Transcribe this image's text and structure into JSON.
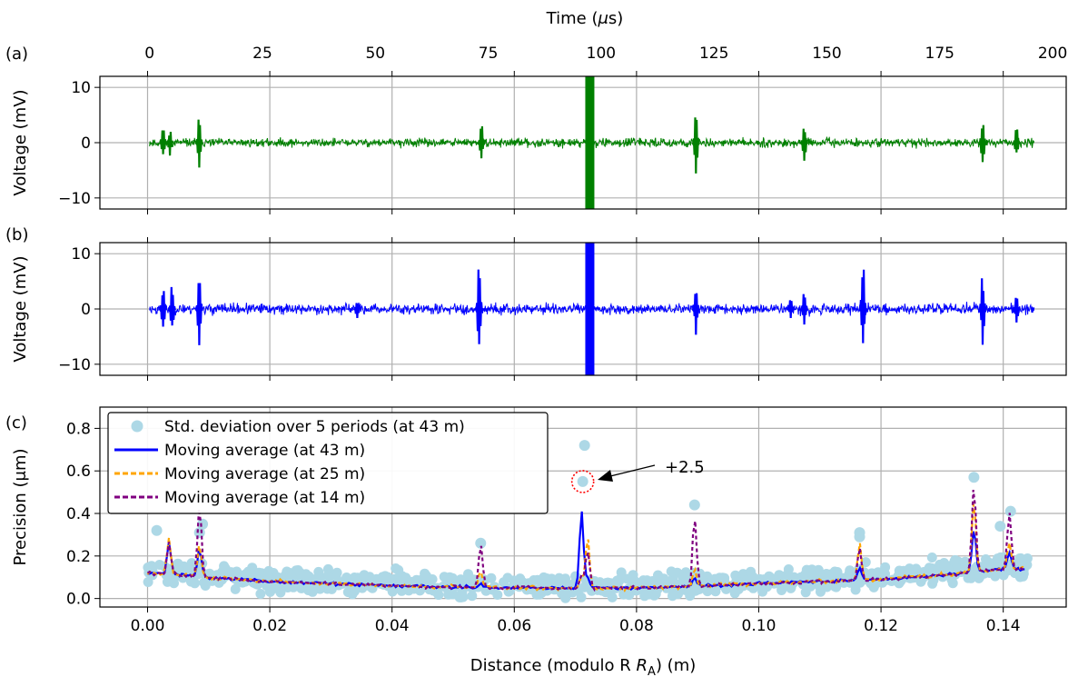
{
  "chart_data": [
    {
      "panel": "(a)",
      "type": "line",
      "top_axis": {
        "label": "Time (μs)",
        "ticks": [
          "0",
          "25",
          "50",
          "75",
          "100",
          "125",
          "150",
          "175",
          "200"
        ],
        "range": [
          -11,
          203
        ]
      },
      "ylabel": "Voltage (mV)",
      "yticks": [
        "10",
        "0",
        "−10"
      ],
      "ylim": [
        -12,
        12
      ],
      "grid": true,
      "color": "#008000",
      "noise_amplitude_mV": 0.8,
      "time_range_us": [
        0,
        196
      ],
      "bursts": [
        {
          "x_us": 3,
          "amp_mV": 3.5
        },
        {
          "x_us": 4.5,
          "amp_mV": 2.5
        },
        {
          "x_us": 11,
          "amp_mV": 5.5
        },
        {
          "x_us": 73.5,
          "amp_mV": 4
        },
        {
          "x_us": 97.5,
          "amp_mV": 12
        },
        {
          "x_us": 121,
          "amp_mV": 6
        },
        {
          "x_us": 145,
          "amp_mV": 4
        },
        {
          "x_us": 184.5,
          "amp_mV": 5
        },
        {
          "x_us": 192,
          "amp_mV": 3
        }
      ]
    },
    {
      "panel": "(b)",
      "type": "line",
      "ylabel": "Voltage (mV)",
      "yticks": [
        "10",
        "0",
        "−10"
      ],
      "ylim": [
        -12,
        12
      ],
      "grid": true,
      "color": "#0000ff",
      "noise_amplitude_mV": 1.0,
      "time_range_us": [
        0,
        196
      ],
      "bursts": [
        {
          "x_us": 3,
          "amp_mV": 4.5
        },
        {
          "x_us": 5,
          "amp_mV": 5
        },
        {
          "x_us": 11,
          "amp_mV": 7
        },
        {
          "x_us": 46,
          "amp_mV": 2
        },
        {
          "x_us": 73,
          "amp_mV": 9
        },
        {
          "x_us": 97.5,
          "amp_mV": 12
        },
        {
          "x_us": 121,
          "amp_mV": 5
        },
        {
          "x_us": 142,
          "amp_mV": 2
        },
        {
          "x_us": 145,
          "amp_mV": 4
        },
        {
          "x_us": 158,
          "amp_mV": 10.5
        },
        {
          "x_us": 184.5,
          "amp_mV": 7
        },
        {
          "x_us": 192,
          "amp_mV": 3
        }
      ]
    },
    {
      "panel": "(c)",
      "type": "scatter",
      "xlabel": "Distance (modulo R",
      "xlabel_sub": "A",
      "xlabel_end": ") (m)",
      "xticks": [
        "0.00",
        "0.02",
        "0.04",
        "0.06",
        "0.08",
        "0.10",
        "0.12",
        "0.14"
      ],
      "xlim": [
        -0.0078,
        0.1503
      ],
      "ylabel": "Precision (μm)",
      "yticks": [
        "0.8",
        "0.6",
        "0.4",
        "0.2",
        "0.0"
      ],
      "ylim": [
        -0.04,
        0.9
      ],
      "grid": true,
      "legend_position": "upper-left",
      "series": [
        {
          "name": "Std. deviation over 5 periods (at 43 m)",
          "style": "scatter",
          "color": "#add8e6"
        },
        {
          "name": "Moving average (at 43 m)",
          "style": "solid",
          "color": "#0000ff"
        },
        {
          "name": "Moving average (at 25 m)",
          "style": "dashed",
          "color": "#ffa500"
        },
        {
          "name": "Moving average (at 14 m)",
          "style": "dashed",
          "color": "#800080"
        }
      ],
      "baseline": [
        {
          "x": 0.0,
          "y": 0.12
        },
        {
          "x": 0.006,
          "y": 0.11
        },
        {
          "x": 0.01,
          "y": 0.1
        },
        {
          "x": 0.02,
          "y": 0.08
        },
        {
          "x": 0.04,
          "y": 0.06
        },
        {
          "x": 0.06,
          "y": 0.05
        },
        {
          "x": 0.08,
          "y": 0.05
        },
        {
          "x": 0.1,
          "y": 0.07
        },
        {
          "x": 0.12,
          "y": 0.09
        },
        {
          "x": 0.13,
          "y": 0.11
        },
        {
          "x": 0.14,
          "y": 0.14
        },
        {
          "x": 0.144,
          "y": 0.14
        }
      ],
      "spikes": [
        {
          "x": 0.0035,
          "h43": 0.15,
          "h25": 0.16,
          "h14": 0.15
        },
        {
          "x": 0.0085,
          "h43": 0.13,
          "h25": 0.15,
          "h14": 0.33
        },
        {
          "x": 0.0545,
          "h43": 0.02,
          "h25": 0.08,
          "h14": 0.2
        },
        {
          "x": 0.071,
          "h43": 0.36,
          "h25": 0.05,
          "h14": 0.06
        },
        {
          "x": 0.072,
          "h43": 0.05,
          "h25": 0.24,
          "h14": 0.18
        },
        {
          "x": 0.0895,
          "h43": 0.04,
          "h25": 0.08,
          "h14": 0.33
        },
        {
          "x": 0.1165,
          "h43": 0.06,
          "h25": 0.17,
          "h14": 0.15
        },
        {
          "x": 0.1352,
          "h43": 0.2,
          "h25": 0.34,
          "h14": 0.41
        },
        {
          "x": 0.141,
          "h43": 0.08,
          "h25": 0.12,
          "h14": 0.26
        }
      ],
      "outlier_points": [
        {
          "x": 0.0015,
          "y": 0.32
        },
        {
          "x": 0.0085,
          "y": 0.31
        },
        {
          "x": 0.009,
          "y": 0.35
        },
        {
          "x": 0.0545,
          "y": 0.26
        },
        {
          "x": 0.0715,
          "y": 0.72
        },
        {
          "x": 0.0895,
          "y": 0.44
        },
        {
          "x": 0.1165,
          "y": 0.31
        },
        {
          "x": 0.1165,
          "y": 0.29
        },
        {
          "x": 0.1352,
          "y": 0.57
        },
        {
          "x": 0.1395,
          "y": 0.34
        },
        {
          "x": 0.1412,
          "y": 0.41
        }
      ],
      "annotation": {
        "text": "+2.5",
        "point": {
          "x": 0.0712,
          "y": 0.55
        },
        "circle_color": "#ff0000"
      }
    }
  ]
}
